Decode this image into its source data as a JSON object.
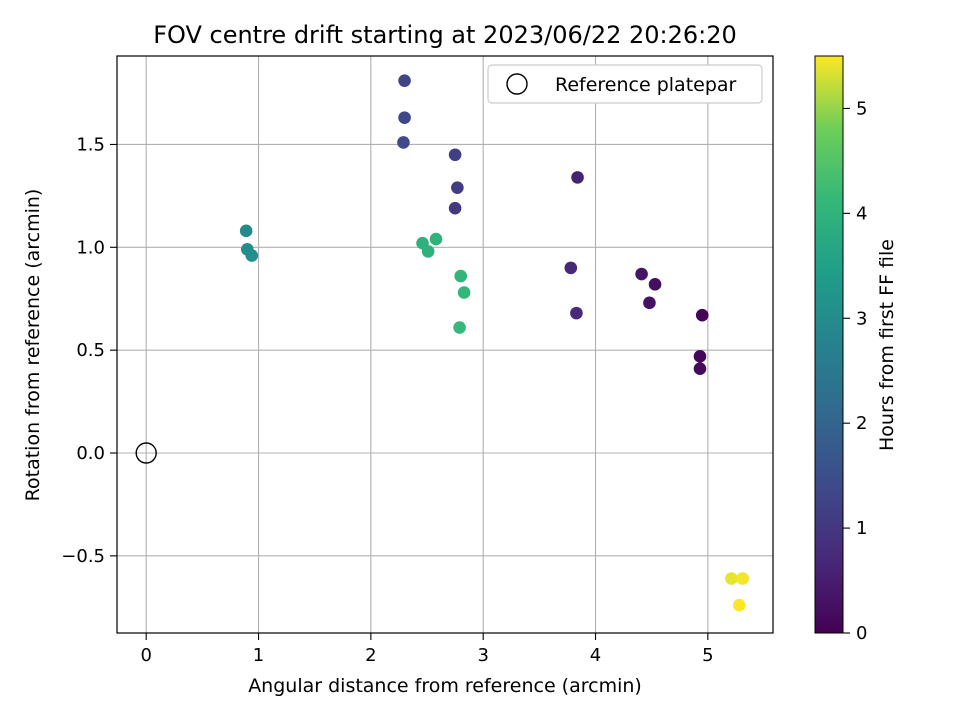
{
  "chart_data": {
    "type": "scatter",
    "title": "FOV centre drift starting at 2023/06/22 20:26:20",
    "xlabel": "Angular distance from reference (arcmin)",
    "ylabel": "Rotation from reference (arcmin)",
    "xlim": [
      -0.26,
      5.58
    ],
    "ylim": [
      -0.875,
      1.93
    ],
    "x_ticks": [
      0,
      1,
      2,
      3,
      4,
      5
    ],
    "x_tick_labels": [
      "0",
      "1",
      "2",
      "3",
      "4",
      "5"
    ],
    "y_ticks": [
      -0.5,
      0.0,
      0.5,
      1.0,
      1.5
    ],
    "y_tick_labels": [
      "−0.5",
      "0.0",
      "0.5",
      "1.0",
      "1.5"
    ],
    "grid": true,
    "legend": {
      "placement": "top-right",
      "label": "Reference platepar"
    },
    "reference_point": {
      "x": 0.0,
      "y": 0.0
    },
    "colorbar": {
      "label": "Hours from first FF file",
      "colormap": "viridis",
      "range": [
        0,
        5.5
      ],
      "ticks": [
        0,
        1,
        2,
        3,
        4,
        5
      ],
      "tick_labels": [
        "0",
        "1",
        "2",
        "3",
        "4",
        "5"
      ]
    },
    "points": [
      {
        "x": 4.95,
        "y": 0.67,
        "hours": 0.05
      },
      {
        "x": 4.93,
        "y": 0.47,
        "hours": 0.1
      },
      {
        "x": 4.93,
        "y": 0.41,
        "hours": 0.15
      },
      {
        "x": 4.53,
        "y": 0.82,
        "hours": 0.25
      },
      {
        "x": 4.48,
        "y": 0.73,
        "hours": 0.3
      },
      {
        "x": 4.41,
        "y": 0.87,
        "hours": 0.35
      },
      {
        "x": 3.84,
        "y": 1.34,
        "hours": 0.6
      },
      {
        "x": 3.78,
        "y": 0.9,
        "hours": 0.7
      },
      {
        "x": 3.83,
        "y": 0.68,
        "hours": 0.75
      },
      {
        "x": 2.75,
        "y": 1.19,
        "hours": 1.05
      },
      {
        "x": 2.77,
        "y": 1.29,
        "hours": 1.1
      },
      {
        "x": 2.75,
        "y": 1.45,
        "hours": 1.15
      },
      {
        "x": 2.3,
        "y": 1.81,
        "hours": 1.3
      },
      {
        "x": 2.3,
        "y": 1.63,
        "hours": 1.35
      },
      {
        "x": 2.29,
        "y": 1.51,
        "hours": 1.4
      },
      {
        "x": 0.89,
        "y": 1.08,
        "hours": 2.95
      },
      {
        "x": 0.9,
        "y": 0.99,
        "hours": 3.0
      },
      {
        "x": 0.94,
        "y": 0.96,
        "hours": 3.05
      },
      {
        "x": 2.46,
        "y": 1.02,
        "hours": 3.95
      },
      {
        "x": 2.51,
        "y": 0.98,
        "hours": 3.95
      },
      {
        "x": 2.58,
        "y": 1.04,
        "hours": 4.0
      },
      {
        "x": 2.8,
        "y": 0.86,
        "hours": 4.05
      },
      {
        "x": 2.83,
        "y": 0.78,
        "hours": 4.1
      },
      {
        "x": 2.79,
        "y": 0.61,
        "hours": 4.15
      },
      {
        "x": 5.21,
        "y": -0.61,
        "hours": 5.4
      },
      {
        "x": 5.31,
        "y": -0.61,
        "hours": 5.45
      },
      {
        "x": 5.28,
        "y": -0.74,
        "hours": 5.5
      }
    ]
  }
}
